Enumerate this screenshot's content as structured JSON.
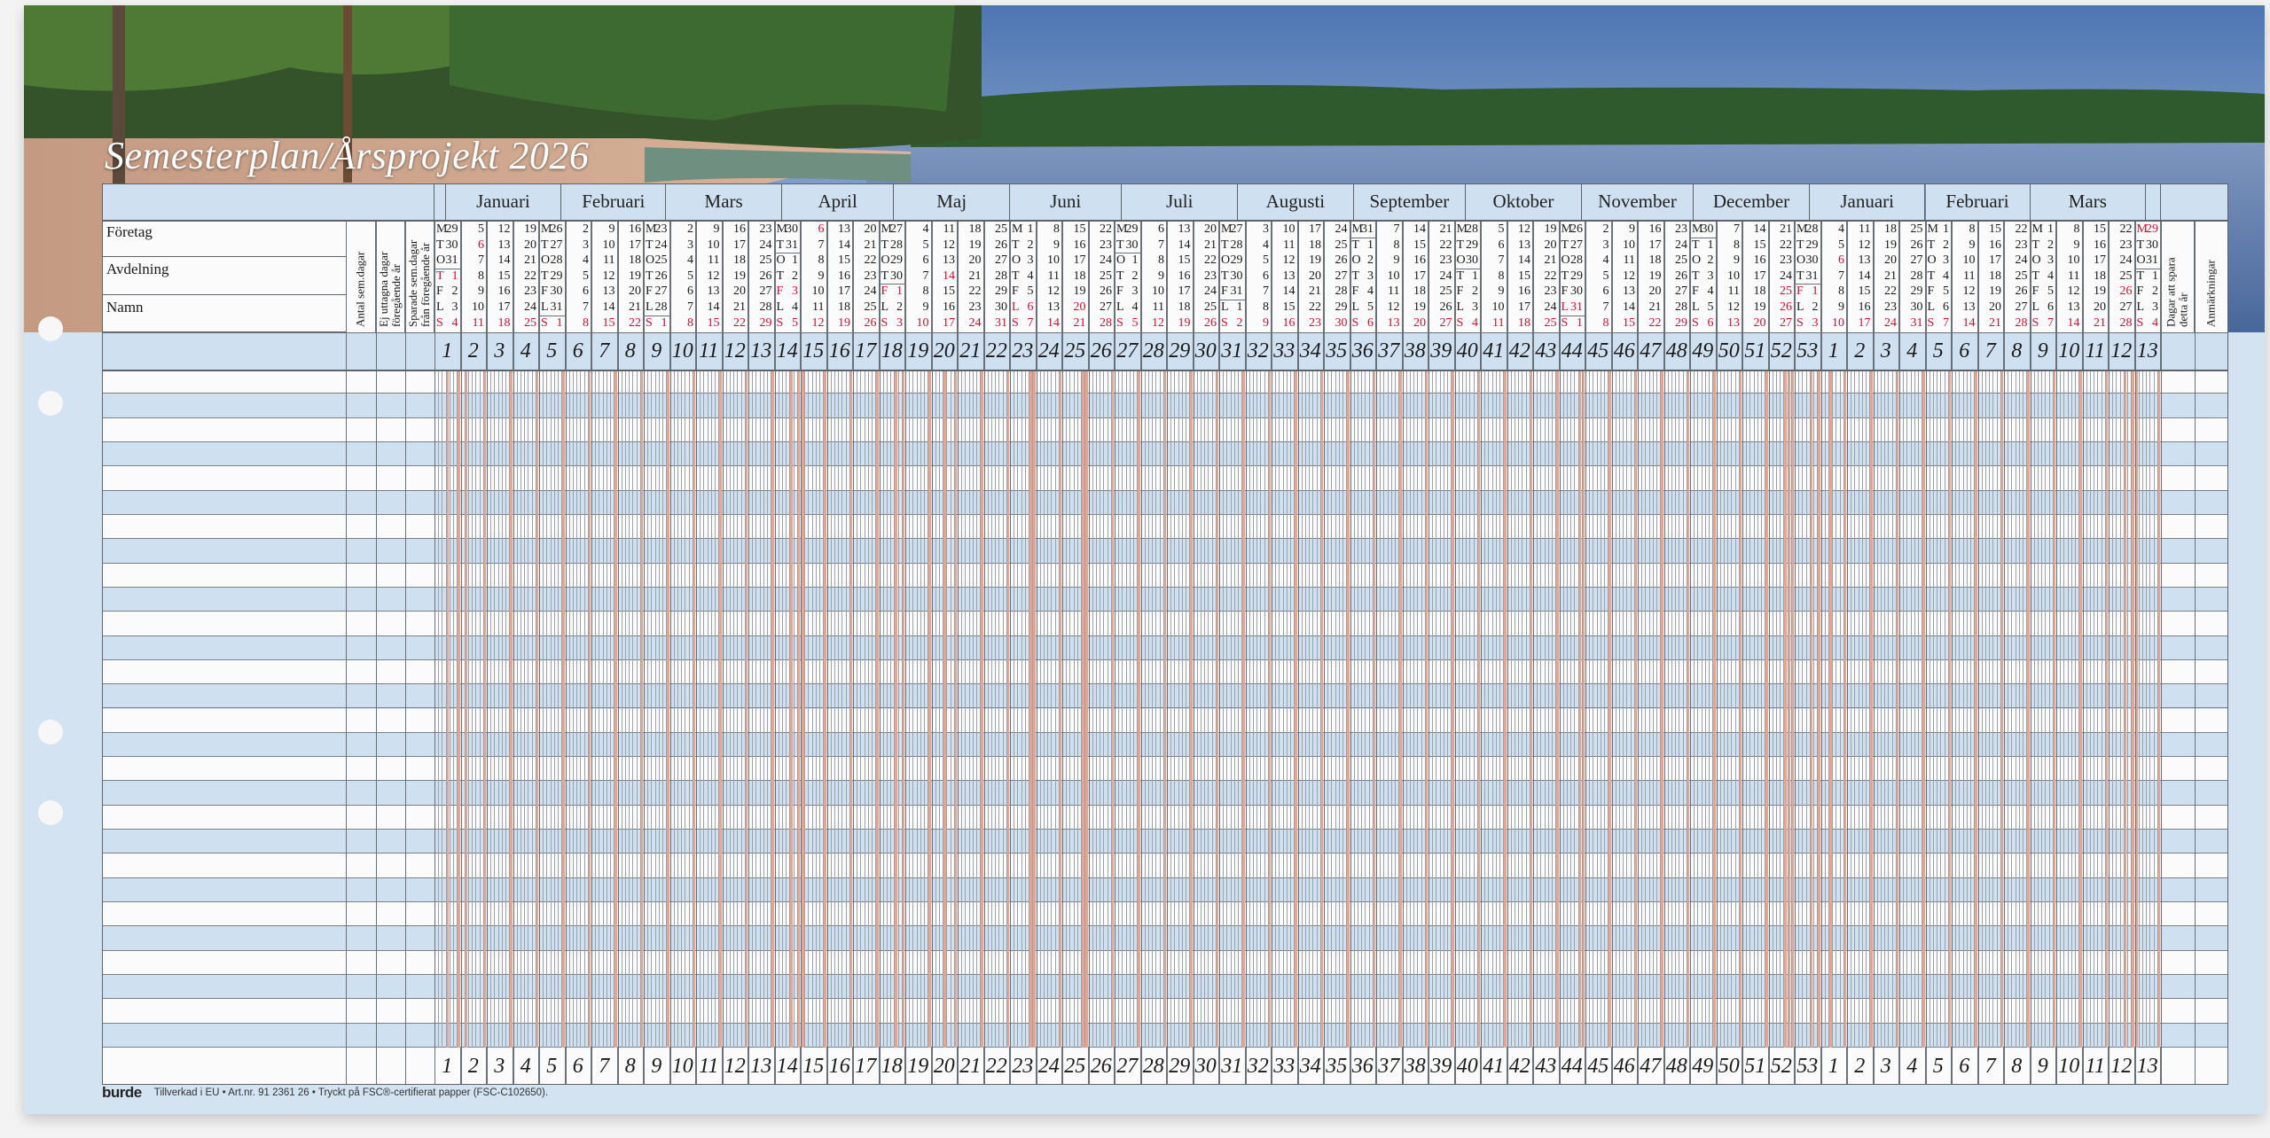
{
  "title": "Semesterplan/Årsprojekt 2026",
  "fields": [
    "Företag",
    "Avdelning",
    "Namn"
  ],
  "left_columns": [
    "Antal sem.dagar",
    "Ej uttagna dagar\nföregående år",
    "Sparade sem.dagar\nfrån föregående år"
  ],
  "right_columns": [
    "Dagar att spara\ndetta år",
    "Anmärkningar"
  ],
  "months": [
    "Januari",
    "Februari",
    "Mars",
    "April",
    "Maj",
    "Juni",
    "Juli",
    "Augusti",
    "September",
    "Oktober",
    "November",
    "December",
    "Januari",
    "Februari",
    "Mars"
  ],
  "weekday_letters": [
    "M",
    "T",
    "O",
    "T",
    "F",
    "L",
    "S"
  ],
  "weeks": [
    {
      "week": "1",
      "days": [
        "29",
        "30",
        "31",
        "1",
        "2",
        "3",
        "4"
      ],
      "letters": true,
      "month_break_after": 3,
      "holidays": [
        3
      ]
    },
    {
      "week": "2",
      "days": [
        "5",
        "6",
        "7",
        "8",
        "9",
        "10",
        "11"
      ],
      "letters": false,
      "holidays": [
        1
      ]
    },
    {
      "week": "3",
      "days": [
        "12",
        "13",
        "14",
        "15",
        "16",
        "17",
        "18"
      ],
      "letters": false,
      "holidays": []
    },
    {
      "week": "4",
      "days": [
        "19",
        "20",
        "21",
        "22",
        "23",
        "24",
        "25"
      ],
      "letters": false,
      "holidays": []
    },
    {
      "week": "5",
      "days": [
        "26",
        "27",
        "28",
        "29",
        "30",
        "31",
        "1"
      ],
      "letters": true,
      "month_break_after": 6,
      "holidays": []
    },
    {
      "week": "6",
      "days": [
        "2",
        "3",
        "4",
        "5",
        "6",
        "7",
        "8"
      ],
      "letters": false,
      "holidays": []
    },
    {
      "week": "7",
      "days": [
        "9",
        "10",
        "11",
        "12",
        "13",
        "14",
        "15"
      ],
      "letters": false,
      "holidays": []
    },
    {
      "week": "8",
      "days": [
        "16",
        "17",
        "18",
        "19",
        "20",
        "21",
        "22"
      ],
      "letters": false,
      "holidays": []
    },
    {
      "week": "9",
      "days": [
        "23",
        "24",
        "25",
        "26",
        "27",
        "28",
        "1"
      ],
      "letters": true,
      "month_break_after": 6,
      "holidays": []
    },
    {
      "week": "10",
      "days": [
        "2",
        "3",
        "4",
        "5",
        "6",
        "7",
        "8"
      ],
      "letters": false,
      "holidays": []
    },
    {
      "week": "11",
      "days": [
        "9",
        "10",
        "11",
        "12",
        "13",
        "14",
        "15"
      ],
      "letters": false,
      "holidays": []
    },
    {
      "week": "12",
      "days": [
        "16",
        "17",
        "18",
        "19",
        "20",
        "21",
        "22"
      ],
      "letters": false,
      "holidays": []
    },
    {
      "week": "13",
      "days": [
        "23",
        "24",
        "25",
        "26",
        "27",
        "28",
        "29"
      ],
      "letters": false,
      "holidays": []
    },
    {
      "week": "14",
      "days": [
        "30",
        "31",
        "1",
        "2",
        "3",
        "4",
        "5"
      ],
      "letters": true,
      "month_break_after": 2,
      "holidays": [
        4
      ]
    },
    {
      "week": "15",
      "days": [
        "6",
        "7",
        "8",
        "9",
        "10",
        "11",
        "12"
      ],
      "letters": false,
      "holidays": [
        0
      ]
    },
    {
      "week": "16",
      "days": [
        "13",
        "14",
        "15",
        "16",
        "17",
        "18",
        "19"
      ],
      "letters": false,
      "holidays": []
    },
    {
      "week": "17",
      "days": [
        "20",
        "21",
        "22",
        "23",
        "24",
        "25",
        "26"
      ],
      "letters": false,
      "holidays": []
    },
    {
      "week": "18",
      "days": [
        "27",
        "28",
        "29",
        "30",
        "1",
        "2",
        "3"
      ],
      "letters": true,
      "month_break_after": 4,
      "holidays": [
        4
      ]
    },
    {
      "week": "19",
      "days": [
        "4",
        "5",
        "6",
        "7",
        "8",
        "9",
        "10"
      ],
      "letters": false,
      "holidays": []
    },
    {
      "week": "20",
      "days": [
        "11",
        "12",
        "13",
        "14",
        "15",
        "16",
        "17"
      ],
      "letters": false,
      "holidays": [
        3
      ]
    },
    {
      "week": "21",
      "days": [
        "18",
        "19",
        "20",
        "21",
        "22",
        "23",
        "24"
      ],
      "letters": false,
      "holidays": []
    },
    {
      "week": "22",
      "days": [
        "25",
        "26",
        "27",
        "28",
        "29",
        "30",
        "31"
      ],
      "letters": false,
      "holidays": []
    },
    {
      "week": "23",
      "days": [
        "1",
        "2",
        "3",
        "4",
        "5",
        "6",
        "7"
      ],
      "letters": true,
      "month_break_after": 0,
      "holidays": [
        5
      ]
    },
    {
      "week": "24",
      "days": [
        "8",
        "9",
        "10",
        "11",
        "12",
        "13",
        "14"
      ],
      "letters": false,
      "holidays": []
    },
    {
      "week": "25",
      "days": [
        "15",
        "16",
        "17",
        "18",
        "19",
        "20",
        "21"
      ],
      "letters": false,
      "holidays": [
        5
      ]
    },
    {
      "week": "26",
      "days": [
        "22",
        "23",
        "24",
        "25",
        "26",
        "27",
        "28"
      ],
      "letters": false,
      "holidays": []
    },
    {
      "week": "27",
      "days": [
        "29",
        "30",
        "1",
        "2",
        "3",
        "4",
        "5"
      ],
      "letters": true,
      "month_break_after": 2,
      "holidays": []
    },
    {
      "week": "28",
      "days": [
        "6",
        "7",
        "8",
        "9",
        "10",
        "11",
        "12"
      ],
      "letters": false,
      "holidays": []
    },
    {
      "week": "29",
      "days": [
        "13",
        "14",
        "15",
        "16",
        "17",
        "18",
        "19"
      ],
      "letters": false,
      "holidays": []
    },
    {
      "week": "30",
      "days": [
        "20",
        "21",
        "22",
        "23",
        "24",
        "25",
        "26"
      ],
      "letters": false,
      "holidays": []
    },
    {
      "week": "31",
      "days": [
        "27",
        "28",
        "29",
        "30",
        "31",
        "1",
        "2"
      ],
      "letters": true,
      "month_break_after": 5,
      "holidays": []
    },
    {
      "week": "32",
      "days": [
        "3",
        "4",
        "5",
        "6",
        "7",
        "8",
        "9"
      ],
      "letters": false,
      "holidays": []
    },
    {
      "week": "33",
      "days": [
        "10",
        "11",
        "12",
        "13",
        "14",
        "15",
        "16"
      ],
      "letters": false,
      "holidays": []
    },
    {
      "week": "34",
      "days": [
        "17",
        "18",
        "19",
        "20",
        "21",
        "22",
        "23"
      ],
      "letters": false,
      "holidays": []
    },
    {
      "week": "35",
      "days": [
        "24",
        "25",
        "26",
        "27",
        "28",
        "29",
        "30"
      ],
      "letters": false,
      "holidays": []
    },
    {
      "week": "36",
      "days": [
        "31",
        "1",
        "2",
        "3",
        "4",
        "5",
        "6"
      ],
      "letters": true,
      "month_break_after": 1,
      "holidays": []
    },
    {
      "week": "37",
      "days": [
        "7",
        "8",
        "9",
        "10",
        "11",
        "12",
        "13"
      ],
      "letters": false,
      "holidays": []
    },
    {
      "week": "38",
      "days": [
        "14",
        "15",
        "16",
        "17",
        "18",
        "19",
        "20"
      ],
      "letters": false,
      "holidays": []
    },
    {
      "week": "39",
      "days": [
        "21",
        "22",
        "23",
        "24",
        "25",
        "26",
        "27"
      ],
      "letters": false,
      "holidays": []
    },
    {
      "week": "40",
      "days": [
        "28",
        "29",
        "30",
        "1",
        "2",
        "3",
        "4"
      ],
      "letters": true,
      "month_break_after": 3,
      "holidays": []
    },
    {
      "week": "41",
      "days": [
        "5",
        "6",
        "7",
        "8",
        "9",
        "10",
        "11"
      ],
      "letters": false,
      "holidays": []
    },
    {
      "week": "42",
      "days": [
        "12",
        "13",
        "14",
        "15",
        "16",
        "17",
        "18"
      ],
      "letters": false,
      "holidays": []
    },
    {
      "week": "43",
      "days": [
        "19",
        "20",
        "21",
        "22",
        "23",
        "24",
        "25"
      ],
      "letters": false,
      "holidays": []
    },
    {
      "week": "44",
      "days": [
        "26",
        "27",
        "28",
        "29",
        "30",
        "31",
        "1"
      ],
      "letters": true,
      "month_break_after": 6,
      "holidays": [
        5
      ]
    },
    {
      "week": "45",
      "days": [
        "2",
        "3",
        "4",
        "5",
        "6",
        "7",
        "8"
      ],
      "letters": false,
      "holidays": []
    },
    {
      "week": "46",
      "days": [
        "9",
        "10",
        "11",
        "12",
        "13",
        "14",
        "15"
      ],
      "letters": false,
      "holidays": []
    },
    {
      "week": "47",
      "days": [
        "16",
        "17",
        "18",
        "19",
        "20",
        "21",
        "22"
      ],
      "letters": false,
      "holidays": []
    },
    {
      "week": "48",
      "days": [
        "23",
        "24",
        "25",
        "26",
        "27",
        "28",
        "29"
      ],
      "letters": false,
      "holidays": []
    },
    {
      "week": "49",
      "days": [
        "30",
        "1",
        "2",
        "3",
        "4",
        "5",
        "6"
      ],
      "letters": true,
      "month_break_after": 1,
      "holidays": []
    },
    {
      "week": "50",
      "days": [
        "7",
        "8",
        "9",
        "10",
        "11",
        "12",
        "13"
      ],
      "letters": false,
      "holidays": []
    },
    {
      "week": "51",
      "days": [
        "14",
        "15",
        "16",
        "17",
        "18",
        "19",
        "20"
      ],
      "letters": false,
      "holidays": []
    },
    {
      "week": "52",
      "days": [
        "21",
        "22",
        "23",
        "24",
        "25",
        "26",
        "27"
      ],
      "letters": false,
      "holidays": [
        4,
        5
      ]
    },
    {
      "week": "53",
      "days": [
        "28",
        "29",
        "30",
        "31",
        "1",
        "2",
        "3"
      ],
      "letters": true,
      "month_break_after": 4,
      "holidays": [
        4
      ]
    },
    {
      "week": "1",
      "days": [
        "4",
        "5",
        "6",
        "7",
        "8",
        "9",
        "10"
      ],
      "letters": false,
      "holidays": [
        2
      ]
    },
    {
      "week": "2",
      "days": [
        "11",
        "12",
        "13",
        "14",
        "15",
        "16",
        "17"
      ],
      "letters": false,
      "holidays": []
    },
    {
      "week": "3",
      "days": [
        "18",
        "19",
        "20",
        "21",
        "22",
        "23",
        "24"
      ],
      "letters": false,
      "holidays": []
    },
    {
      "week": "4",
      "days": [
        "25",
        "26",
        "27",
        "28",
        "29",
        "30",
        "31"
      ],
      "letters": false,
      "holidays": []
    },
    {
      "week": "5",
      "days": [
        "1",
        "2",
        "3",
        "4",
        "5",
        "6",
        "7"
      ],
      "letters": true,
      "month_break_after": 0,
      "holidays": []
    },
    {
      "week": "6",
      "days": [
        "8",
        "9",
        "10",
        "11",
        "12",
        "13",
        "14"
      ],
      "letters": false,
      "holidays": []
    },
    {
      "week": "7",
      "days": [
        "15",
        "16",
        "17",
        "18",
        "19",
        "20",
        "21"
      ],
      "letters": false,
      "holidays": []
    },
    {
      "week": "8",
      "days": [
        "22",
        "23",
        "24",
        "25",
        "26",
        "27",
        "28"
      ],
      "letters": false,
      "holidays": []
    },
    {
      "week": "9",
      "days": [
        "1",
        "2",
        "3",
        "4",
        "5",
        "6",
        "7"
      ],
      "letters": true,
      "month_break_after": 0,
      "holidays": []
    },
    {
      "week": "10",
      "days": [
        "8",
        "9",
        "10",
        "11",
        "12",
        "13",
        "14"
      ],
      "letters": false,
      "holidays": []
    },
    {
      "week": "11",
      "days": [
        "15",
        "16",
        "17",
        "18",
        "19",
        "20",
        "21"
      ],
      "letters": false,
      "holidays": []
    },
    {
      "week": "12",
      "days": [
        "22",
        "23",
        "24",
        "25",
        "26",
        "27",
        "28"
      ],
      "letters": false,
      "holidays": [
        4
      ]
    },
    {
      "week": "13",
      "days": [
        "29",
        "30",
        "31",
        "1",
        "2",
        "3",
        "4"
      ],
      "letters": true,
      "month_break_after": 3,
      "holidays": [
        0
      ]
    }
  ],
  "footer": {
    "brand": "burde",
    "text": "Tillverkad i EU  •  Art.nr. 91 2361 26  •  Tryckt på FSC®-certifierat papper (FSC-C102650)."
  },
  "colors": {
    "row_blue": "#cfe0f0",
    "row_white": "#fbfbfb",
    "holiday_red": "#c8102e",
    "holiday_stripe": "#e7a590",
    "paper": "#d3e3f2"
  }
}
